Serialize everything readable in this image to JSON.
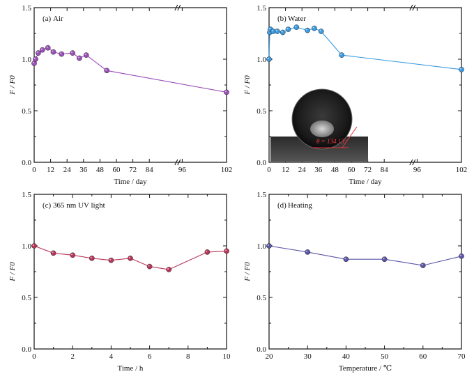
{
  "chart_data": [
    {
      "type": "line",
      "panel_tag": "(a)",
      "label": "Air",
      "color": "#9b4fb8",
      "xlabel": "Time / day",
      "ylabel": "F / F0",
      "xticks": [
        "0",
        "12",
        "24",
        "36",
        "48",
        "60",
        "72",
        "84",
        "96",
        "102"
      ],
      "yticks": [
        "0.0",
        "0.5",
        "1.0",
        "1.5"
      ],
      "xlim": [
        0,
        102
      ],
      "ylim": [
        0,
        1.5
      ],
      "x_note": "x axis is broken between 84 and 96; data point at 102 plotted at right edge",
      "x": [
        0,
        1,
        3,
        6,
        10,
        14,
        20,
        28,
        33,
        38,
        53,
        102
      ],
      "y": [
        0.96,
        1.0,
        1.06,
        1.09,
        1.11,
        1.07,
        1.05,
        1.06,
        1.01,
        1.04,
        0.89,
        0.68
      ]
    },
    {
      "type": "line",
      "panel_tag": "(b)",
      "label": "Water",
      "color": "#3a9ae0",
      "xlabel": "Time / day",
      "ylabel": "F / F0",
      "xticks": [
        "0",
        "12",
        "24",
        "36",
        "48",
        "60",
        "72",
        "84",
        "96",
        "102"
      ],
      "yticks": [
        "0.0",
        "0.5",
        "1.0",
        "1.5"
      ],
      "xlim": [
        0,
        102
      ],
      "ylim": [
        0,
        1.5
      ],
      "x": [
        0,
        0.5,
        1,
        3,
        6,
        10,
        14,
        20,
        28,
        33,
        38,
        53,
        102
      ],
      "y": [
        1.0,
        1.26,
        1.29,
        1.27,
        1.27,
        1.26,
        1.29,
        1.31,
        1.28,
        1.3,
        1.27,
        1.04,
        0.9
      ],
      "inset": {
        "angle_label": "θ = 134.13°"
      }
    },
    {
      "type": "line",
      "panel_tag": "(c)",
      "label": "365 nm UV light",
      "color": "#b8355a",
      "xlabel": "Time / h",
      "ylabel": "F / F0",
      "xticks": [
        "0",
        "2",
        "4",
        "6",
        "8",
        "10"
      ],
      "yticks": [
        "0.0",
        "0.5",
        "1.0",
        "1.5"
      ],
      "xlim": [
        0,
        10
      ],
      "ylim": [
        0,
        1.5
      ],
      "x": [
        0,
        1,
        2,
        3,
        4,
        5,
        6,
        7,
        9,
        10
      ],
      "y": [
        1.0,
        0.93,
        0.91,
        0.88,
        0.86,
        0.88,
        0.8,
        0.77,
        0.94,
        0.95
      ]
    },
    {
      "type": "line",
      "panel_tag": "(d)",
      "label": "Heating",
      "color": "#5a55a8",
      "xlabel": "Temperature / ℃",
      "ylabel": "F / F0",
      "xticks": [
        "20",
        "30",
        "40",
        "50",
        "60",
        "70"
      ],
      "yticks": [
        "0.0",
        "0.5",
        "1.0",
        "1.5"
      ],
      "xlim": [
        20,
        70
      ],
      "ylim": [
        0,
        1.5
      ],
      "x": [
        20,
        30,
        40,
        50,
        60,
        70
      ],
      "y": [
        1.0,
        0.94,
        0.87,
        0.87,
        0.81,
        0.9
      ]
    }
  ]
}
